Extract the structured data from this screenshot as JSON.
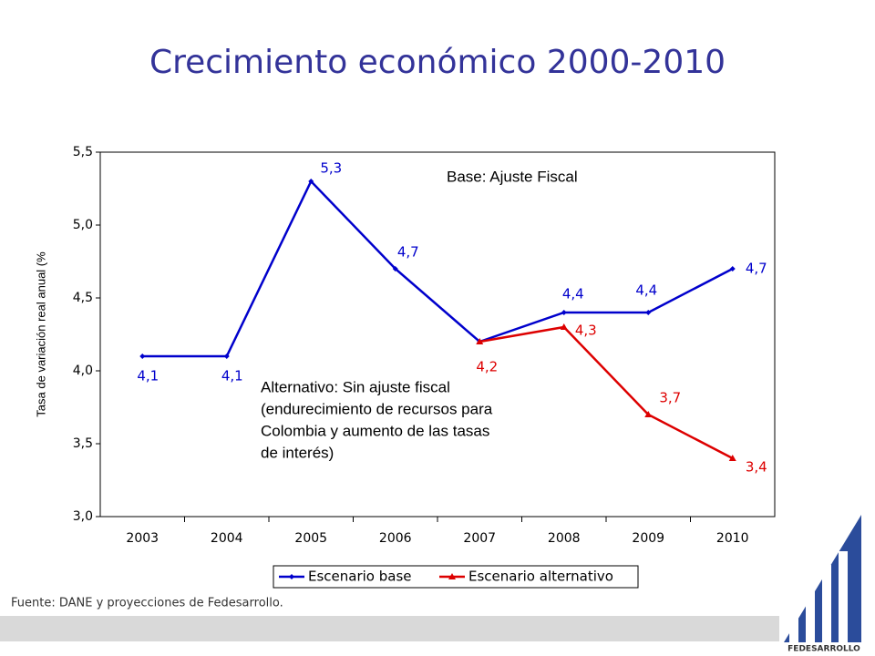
{
  "chart_data": {
    "type": "line",
    "title": "Crecimiento económico 2000-2010",
    "y_label": "Tasa de variación real anual (%",
    "categories": [
      "2003",
      "2004",
      "2005",
      "2006",
      "2007",
      "2008",
      "2009",
      "2010"
    ],
    "series": [
      {
        "name": "Escenario base",
        "color": "#0000cc",
        "marker": "diamond",
        "values": [
          4.1,
          4.1,
          5.3,
          4.7,
          4.2,
          4.4,
          4.4,
          4.7
        ],
        "value_labels": [
          "4,1",
          "4,1",
          "5,3",
          "4,7",
          null,
          "4,4",
          "4,4",
          "4,7"
        ]
      },
      {
        "name": "Escenario alternativo",
        "color": "#dd0000",
        "marker": "triangle",
        "values": [
          null,
          null,
          null,
          null,
          4.2,
          4.3,
          3.7,
          3.4
        ],
        "value_labels": [
          null,
          null,
          null,
          null,
          "4,2",
          "4,3",
          "3,7",
          "3,4"
        ]
      }
    ],
    "ylim": [
      3,
      5.5
    ],
    "yticks": [
      {
        "value": 3,
        "label": "3,0"
      },
      {
        "value": 3.5,
        "label": "3,5"
      },
      {
        "value": 4,
        "label": "4,0"
      },
      {
        "value": 4.5,
        "label": "4,5"
      },
      {
        "value": 5,
        "label": "5,0"
      },
      {
        "value": 5.5,
        "label": "5,5"
      }
    ],
    "annotations": {
      "base": "Base: Ajuste Fiscal",
      "alternative": [
        "Alternativo: Sin ajuste fiscal",
        "(endurecimiento de recursos para",
        "Colombia y aumento de las tasas",
        "de interés)"
      ]
    },
    "source": "Fuente: DANE y proyecciones de Fedesarrollo.",
    "logo_text": "FEDESARROLLO"
  }
}
